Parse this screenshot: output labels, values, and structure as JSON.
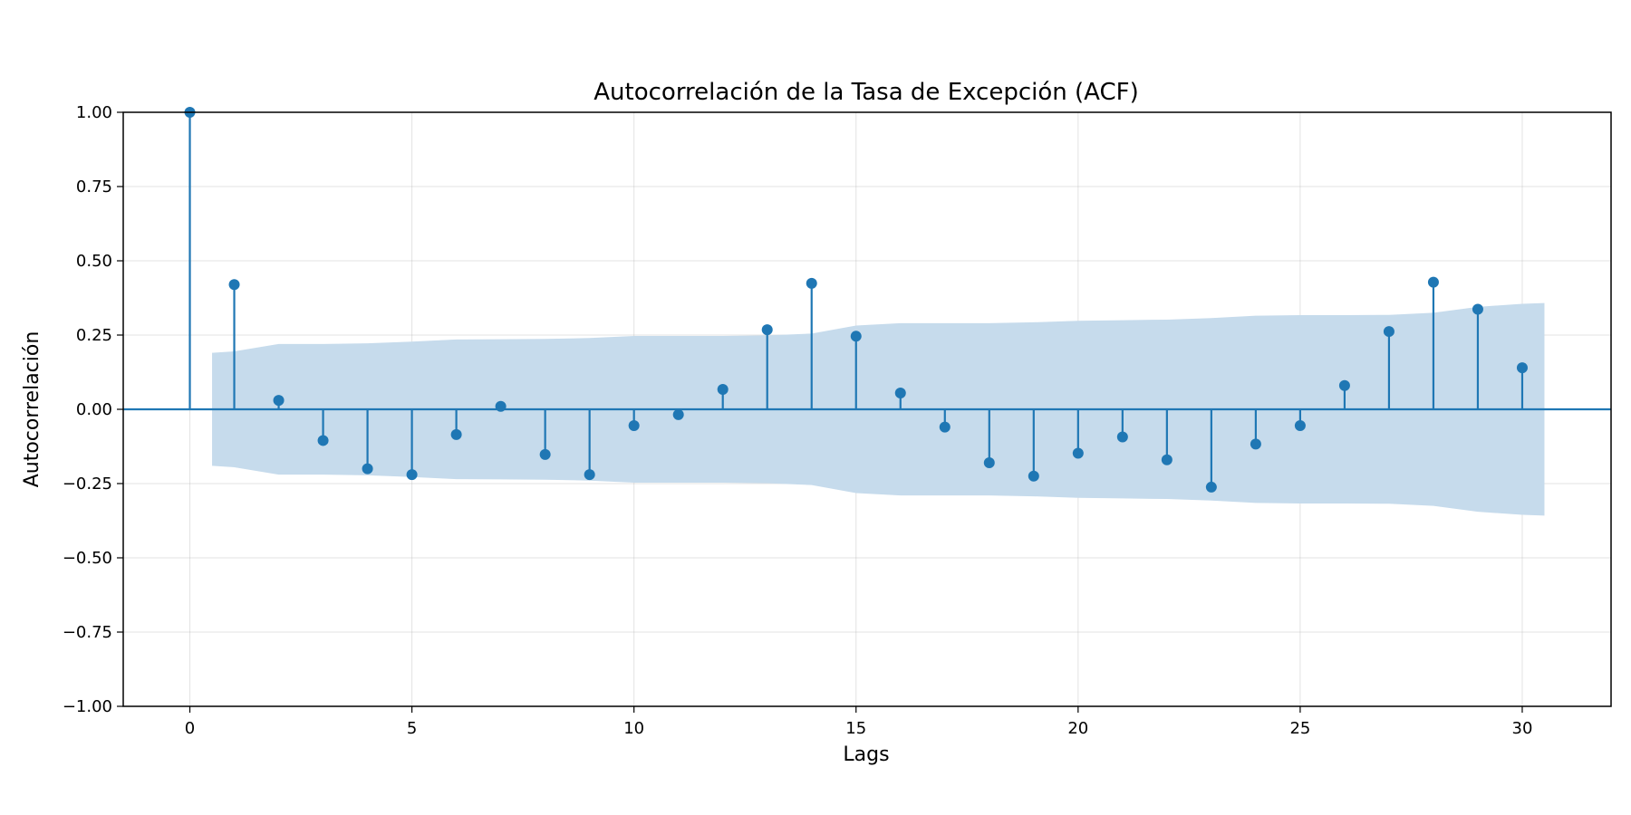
{
  "chart_data": {
    "type": "stem",
    "title": "Autocorrelación de la Tasa de Excepción (ACF)",
    "xlabel": "Lags",
    "ylabel": "Autocorrelación",
    "xlim": [
      -1.5,
      32
    ],
    "ylim": [
      -1,
      1
    ],
    "x_ticks": [
      0,
      5,
      10,
      15,
      20,
      25,
      30
    ],
    "x_tick_labels": [
      "0",
      "5",
      "10",
      "15",
      "20",
      "25",
      "30"
    ],
    "y_ticks": [
      -1,
      -0.75,
      -0.5,
      -0.25,
      0,
      0.25,
      0.5,
      0.75,
      1
    ],
    "y_tick_labels": [
      "−1.00",
      "−0.75",
      "−0.50",
      "−0.25",
      "0.00",
      "0.25",
      "0.50",
      "0.75",
      "1.00"
    ],
    "grid": true,
    "color": "#1f77b4",
    "band_color": "#c6dbec",
    "lags": [
      0,
      1,
      2,
      3,
      4,
      5,
      6,
      7,
      8,
      9,
      10,
      11,
      12,
      13,
      14,
      15,
      16,
      17,
      18,
      19,
      20,
      21,
      22,
      23,
      24,
      25,
      26,
      27,
      28,
      29,
      30
    ],
    "values": [
      1.0,
      0.42,
      0.03,
      -0.105,
      -0.2,
      -0.22,
      -0.085,
      0.01,
      -0.152,
      -0.22,
      -0.055,
      -0.018,
      0.067,
      0.268,
      0.424,
      0.246,
      0.055,
      -0.06,
      -0.18,
      -0.225,
      -0.148,
      -0.093,
      -0.17,
      -0.262,
      -0.117,
      -0.055,
      0.08,
      0.262,
      0.428,
      0.337,
      0.14
    ],
    "confidence_band": {
      "x": [
        0.5,
        1,
        2,
        3,
        4,
        5,
        6,
        7,
        8,
        9,
        10,
        11,
        12,
        13,
        14,
        15,
        16,
        17,
        18,
        19,
        20,
        21,
        22,
        23,
        24,
        25,
        26,
        27,
        28,
        29,
        30,
        30.5
      ],
      "upper": [
        0.19,
        0.195,
        0.22,
        0.22,
        0.222,
        0.228,
        0.235,
        0.236,
        0.237,
        0.24,
        0.247,
        0.247,
        0.247,
        0.249,
        0.255,
        0.282,
        0.29,
        0.29,
        0.29,
        0.293,
        0.298,
        0.3,
        0.302,
        0.307,
        0.315,
        0.317,
        0.317,
        0.318,
        0.325,
        0.345,
        0.355,
        0.358
      ],
      "lower": [
        -0.19,
        -0.195,
        -0.22,
        -0.22,
        -0.222,
        -0.228,
        -0.235,
        -0.236,
        -0.237,
        -0.24,
        -0.247,
        -0.247,
        -0.247,
        -0.249,
        -0.255,
        -0.282,
        -0.29,
        -0.29,
        -0.29,
        -0.293,
        -0.298,
        -0.3,
        -0.302,
        -0.307,
        -0.315,
        -0.317,
        -0.317,
        -0.318,
        -0.325,
        -0.345,
        -0.355,
        -0.358
      ]
    }
  }
}
